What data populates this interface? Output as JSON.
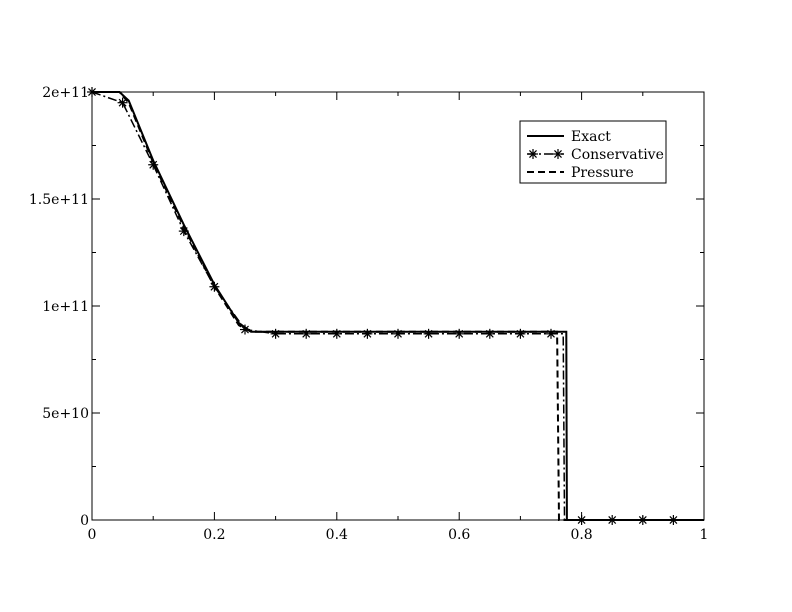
{
  "chart_data": {
    "type": "line",
    "title": "",
    "xlabel": "",
    "ylabel": "",
    "xlim": [
      0,
      1
    ],
    "ylim": [
      0,
      200000000000
    ],
    "grid": false,
    "legend_position": "top-right",
    "x_ticks": [
      0,
      0.2,
      0.4,
      0.6,
      0.8,
      1
    ],
    "x_tick_labels": [
      "0",
      "0.2",
      "0.4",
      "0.6",
      "0.8",
      "1"
    ],
    "y_ticks": [
      0,
      50000000000,
      100000000000,
      150000000000,
      200000000000
    ],
    "y_tick_labels": [
      "0",
      "5e+10",
      "1e+11",
      "1.5e+11",
      "2e+11"
    ],
    "series": [
      {
        "name": "Exact",
        "style": "solid",
        "x": [
          0,
          0.045,
          0.06,
          0.1,
          0.15,
          0.2,
          0.24,
          0.26,
          0.5,
          0.775,
          0.776,
          0.78,
          1
        ],
        "y": [
          200000000000,
          200000000000,
          196000000000,
          168000000000,
          138000000000,
          110000000000,
          92000000000,
          88000000000,
          88000000000,
          88000000000,
          0,
          0,
          0
        ]
      },
      {
        "name": "Conservative",
        "style": "dash-dot-star",
        "x": [
          0,
          0.05,
          0.1,
          0.15,
          0.2,
          0.25,
          0.3,
          0.35,
          0.4,
          0.45,
          0.5,
          0.55,
          0.6,
          0.65,
          0.7,
          0.75,
          0.77,
          0.772,
          0.8,
          0.85,
          0.9,
          0.95
        ],
        "y": [
          200000000000,
          195000000000,
          166000000000,
          135000000000,
          109000000000,
          89000000000,
          87000000000,
          87000000000,
          87000000000,
          87000000000,
          87000000000,
          87000000000,
          87000000000,
          87000000000,
          87000000000,
          87000000000,
          87000000000,
          0,
          0,
          0,
          0,
          0
        ],
        "markers": [
          [
            0,
            200000000000
          ],
          [
            0.05,
            195000000000
          ],
          [
            0.1,
            166000000000
          ],
          [
            0.15,
            135000000000
          ],
          [
            0.2,
            109000000000
          ],
          [
            0.25,
            89000000000
          ],
          [
            0.3,
            87000000000
          ],
          [
            0.35,
            87000000000
          ],
          [
            0.4,
            87000000000
          ],
          [
            0.45,
            87000000000
          ],
          [
            0.5,
            87000000000
          ],
          [
            0.55,
            87000000000
          ],
          [
            0.6,
            87000000000
          ],
          [
            0.65,
            87000000000
          ],
          [
            0.7,
            87000000000
          ],
          [
            0.75,
            87000000000
          ],
          [
            0.8,
            0
          ],
          [
            0.85,
            0
          ],
          [
            0.9,
            0
          ],
          [
            0.95,
            0
          ]
        ]
      },
      {
        "name": "Pressure",
        "style": "dashed",
        "x": [
          0,
          0.045,
          0.06,
          0.1,
          0.15,
          0.2,
          0.24,
          0.26,
          0.5,
          0.76,
          0.763,
          0.77,
          1
        ],
        "y": [
          200000000000,
          200000000000,
          195000000000,
          167000000000,
          137000000000,
          109000000000,
          91000000000,
          88000000000,
          88000000000,
          88000000000,
          0,
          0,
          0
        ]
      }
    ]
  }
}
